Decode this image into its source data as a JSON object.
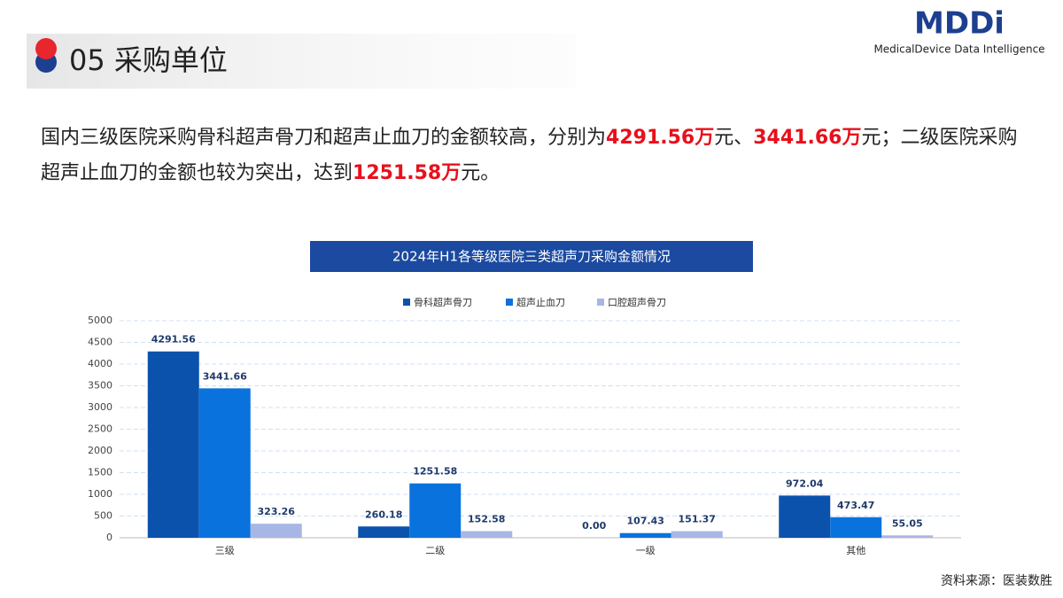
{
  "header": {
    "title": "05 采购单位",
    "logo": "MDDi",
    "logo_subtitle": "MedicalDevice Data Intelligence"
  },
  "text": {
    "segments": [
      {
        "text": "国内三级医院采购骨科超声骨刀和超声止血刀的金额较高，分别为",
        "emphasis": false
      },
      {
        "text": "4291.56万",
        "emphasis": true
      },
      {
        "text": "元、",
        "emphasis": false
      },
      {
        "text": "3441.66万",
        "emphasis": true
      },
      {
        "text": "元；二级医院采购超声止血刀的金额也较为突出，达到",
        "emphasis": false
      },
      {
        "text": "1251.58万",
        "emphasis": true
      },
      {
        "text": "元。",
        "emphasis": false
      }
    ]
  },
  "source": "资料来源：医装数胜",
  "chart_data": {
    "type": "bar",
    "title": "2024年H1各等级医院三类超声刀采购金额情况",
    "categories": [
      "三级",
      "二级",
      "一级",
      "其他"
    ],
    "series": [
      {
        "name": "骨科超声骨刀",
        "color": "#0b52ad",
        "values": [
          4291.56,
          260.18,
          0,
          972.04
        ],
        "value_labels": [
          "4291.56",
          "260.18",
          "0.00",
          "972.04"
        ]
      },
      {
        "name": "超声止血刀",
        "color": "#0a72dc",
        "values": [
          3441.66,
          1251.58,
          107.43,
          473.47
        ],
        "value_labels": [
          "3441.66",
          "1251.58",
          "107.43",
          "473.47"
        ]
      },
      {
        "name": "口腔超声骨刀",
        "color": "#a8b6e6",
        "values": [
          323.26,
          152.58,
          151.37,
          55.05
        ],
        "value_labels": [
          "323.26",
          "152.58",
          "151.37",
          "55.05"
        ]
      }
    ],
    "ylim": [
      0,
      5000
    ],
    "yticks": [
      0,
      500,
      1000,
      1500,
      2000,
      2500,
      3000,
      3500,
      4000,
      4500,
      5000
    ],
    "grid": true
  }
}
